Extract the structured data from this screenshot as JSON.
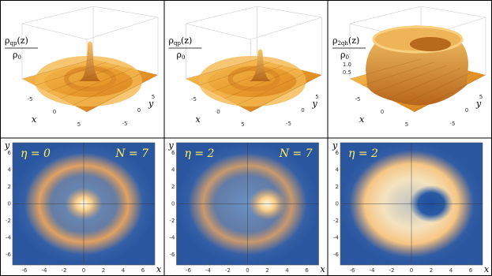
{
  "panels": [
    {
      "label": {
        "symbol": "ρ",
        "sub": "qp",
        "arg": "(z)",
        "den": "ρ",
        "den_sub": "0"
      },
      "x_ticks": [
        "-5",
        "0",
        "5"
      ],
      "y_ticks": [
        "-5",
        "0",
        "5"
      ],
      "x_label": "x",
      "y_label": "y"
    },
    {
      "label": {
        "symbol": "ρ",
        "sub": "qp",
        "arg": "(z)",
        "den": "ρ",
        "den_sub": "0"
      },
      "x_ticks": [
        "-5",
        "0",
        "5"
      ],
      "y_ticks": [
        "-5",
        "0",
        "5"
      ],
      "x_label": "x",
      "y_label": "y"
    },
    {
      "label": {
        "symbol": "ρ",
        "sub": "2qh",
        "arg": "(z)",
        "den": "ρ",
        "den_sub": "0"
      },
      "x_ticks": [
        "-5",
        "0",
        "5"
      ],
      "y_ticks": [
        "-5",
        "0",
        "5"
      ],
      "z_ticks": [
        "0.5",
        "1.0"
      ],
      "x_label": "x",
      "y_label": "y"
    }
  ],
  "maps": [
    {
      "eta": "η = 0",
      "N": "N = 7",
      "x_ticks": [
        -6,
        -4,
        -2,
        0,
        2,
        4,
        6
      ],
      "y_ticks": [
        -6,
        -4,
        -2,
        0,
        2,
        4,
        6
      ],
      "x_label": "x",
      "y_label": "y"
    },
    {
      "eta": "η = 2",
      "N": "N = 7",
      "x_ticks": [
        -6,
        -4,
        -2,
        0,
        2,
        4,
        6
      ],
      "y_ticks": [
        -6,
        -4,
        -2,
        0,
        2,
        4,
        6
      ],
      "x_label": "x",
      "y_label": "y"
    },
    {
      "eta": "η = 2",
      "x_ticks": [
        -6,
        -4,
        -2,
        0,
        2,
        4,
        6
      ],
      "y_ticks": [
        -6,
        -4,
        -2,
        0,
        2,
        4,
        6
      ],
      "x_label": "x",
      "y_label": "y"
    }
  ]
}
